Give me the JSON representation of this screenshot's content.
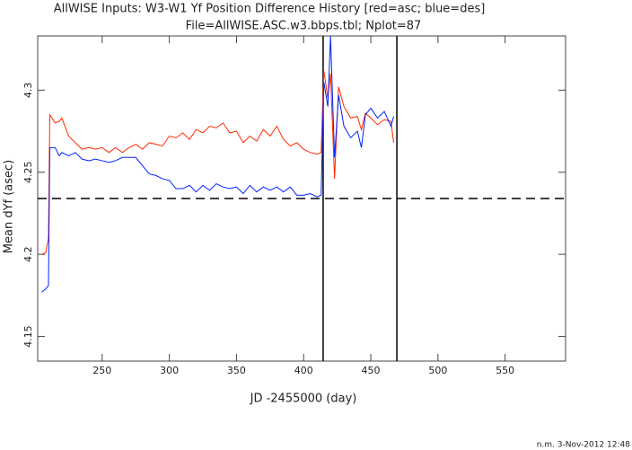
{
  "chart_data": {
    "type": "line",
    "title": "AllWISE Inputs: W3-W1 Yf Position Difference History [red=asc; blue=des]",
    "subtitle": "File=AllWISE.ASC.w3.bbps.tbl; Nplot=87",
    "x_label": "JD -2455000 (day)",
    "y_label": "Mean dYf (asec)",
    "footnote": "n.m. 3-Nov-2012 12:48",
    "x": [
      205,
      208,
      210,
      211,
      215,
      218,
      220,
      225,
      230,
      235,
      240,
      245,
      250,
      255,
      260,
      265,
      270,
      275,
      280,
      285,
      290,
      295,
      300,
      305,
      310,
      315,
      320,
      325,
      330,
      335,
      340,
      345,
      350,
      355,
      360,
      365,
      370,
      375,
      380,
      385,
      390,
      395,
      400,
      405,
      410,
      413,
      415,
      418,
      420,
      423,
      426,
      430,
      435,
      440,
      443,
      446,
      450,
      455,
      460,
      465,
      467
    ],
    "series": [
      {
        "name": "asc",
        "color": "#ff2a00",
        "values": [
          4.2,
          4.201,
          4.21,
          4.285,
          4.28,
          4.281,
          4.283,
          4.272,
          4.268,
          4.264,
          4.265,
          4.264,
          4.265,
          4.262,
          4.265,
          4.262,
          4.265,
          4.267,
          4.264,
          4.268,
          4.267,
          4.266,
          4.272,
          4.271,
          4.274,
          4.27,
          4.276,
          4.274,
          4.278,
          4.277,
          4.28,
          4.274,
          4.275,
          4.268,
          4.272,
          4.269,
          4.276,
          4.272,
          4.278,
          4.27,
          4.266,
          4.268,
          4.264,
          4.262,
          4.261,
          4.262,
          4.312,
          4.295,
          4.31,
          4.246,
          4.302,
          4.29,
          4.283,
          4.284,
          4.276,
          4.286,
          4.283,
          4.279,
          4.282,
          4.281,
          4.268
        ]
      },
      {
        "name": "des",
        "color": "#0022ff",
        "values": [
          4.177,
          4.179,
          4.181,
          4.265,
          4.265,
          4.26,
          4.262,
          4.26,
          4.262,
          4.258,
          4.257,
          4.258,
          4.257,
          4.256,
          4.257,
          4.259,
          4.259,
          4.259,
          4.254,
          4.249,
          4.248,
          4.246,
          4.245,
          4.24,
          4.24,
          4.242,
          4.238,
          4.242,
          4.239,
          4.243,
          4.241,
          4.24,
          4.241,
          4.237,
          4.242,
          4.238,
          4.241,
          4.239,
          4.241,
          4.238,
          4.241,
          4.236,
          4.236,
          4.237,
          4.235,
          4.236,
          4.305,
          4.29,
          4.333,
          4.259,
          4.297,
          4.278,
          4.271,
          4.275,
          4.265,
          4.285,
          4.289,
          4.283,
          4.287,
          4.278,
          4.284
        ]
      }
    ],
    "hlines": [
      4.234
    ],
    "vlines": [
      414.5,
      469.4
    ],
    "xlim": [
      202,
      595
    ],
    "ylim": [
      4.135,
      4.333
    ],
    "xticks": [
      250,
      300,
      350,
      400,
      450,
      500,
      550
    ],
    "yticks": [
      4.15,
      4.2,
      4.25,
      4.3
    ]
  }
}
